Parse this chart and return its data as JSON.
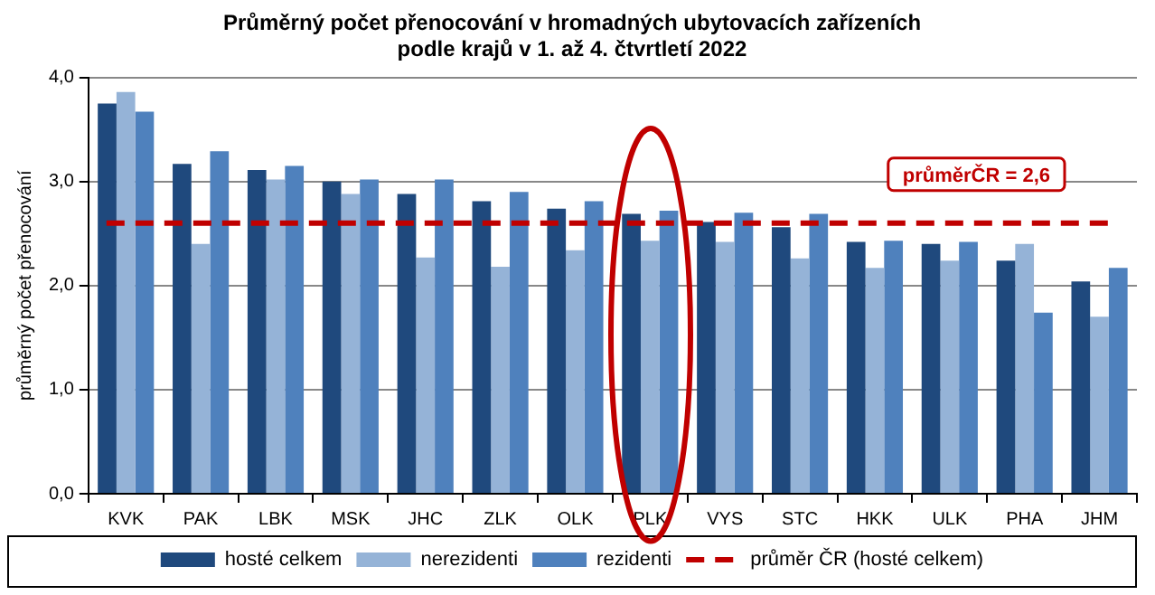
{
  "chart_data": {
    "type": "bar",
    "title": [
      "Průměrný počet přenocování v hromadných ubytovacích zařízeních",
      "podle krajů v 1. až 4. čtvrtletí 2022"
    ],
    "ylabel": "průměrný počet přenocování",
    "categories": [
      "KVK",
      "PAK",
      "LBK",
      "MSK",
      "JHC",
      "ZLK",
      "OLK",
      "PLK",
      "VYS",
      "STC",
      "HKK",
      "ULK",
      "PHA",
      "JHM"
    ],
    "series": [
      {
        "name": "hosté celkem",
        "color": "#1f497d",
        "values": [
          3.75,
          3.17,
          3.11,
          3.0,
          2.88,
          2.81,
          2.74,
          2.69,
          2.61,
          2.56,
          2.42,
          2.4,
          2.24,
          2.04
        ]
      },
      {
        "name": "nerezidenti",
        "color": "#95b3d7",
        "values": [
          3.86,
          2.4,
          3.02,
          2.88,
          2.27,
          2.18,
          2.34,
          2.43,
          2.42,
          2.26,
          2.17,
          2.24,
          2.4,
          1.7
        ]
      },
      {
        "name": "rezidenti",
        "color": "#4f81bd",
        "values": [
          3.67,
          3.29,
          3.15,
          3.02,
          3.02,
          2.9,
          2.81,
          2.72,
          2.7,
          2.69,
          2.43,
          2.42,
          1.74,
          2.17
        ]
      }
    ],
    "ylim": [
      0,
      4
    ],
    "yticks": [
      {
        "value": 0,
        "label": "0,0"
      },
      {
        "value": 1,
        "label": "1,0"
      },
      {
        "value": 2,
        "label": "2,0"
      },
      {
        "value": 3,
        "label": "3,0"
      },
      {
        "value": 4,
        "label": "4,0"
      }
    ],
    "grid": "y",
    "legend": "bottom",
    "ref_lines": [
      {
        "axis": "y",
        "value": 2.6,
        "label": "průměr ČR (hosté celkem)",
        "color": "#c00000",
        "line_style": "dashed"
      }
    ],
    "annotations": [
      {
        "text": "průměrČR = 2,6",
        "y": 2.6
      }
    ]
  }
}
